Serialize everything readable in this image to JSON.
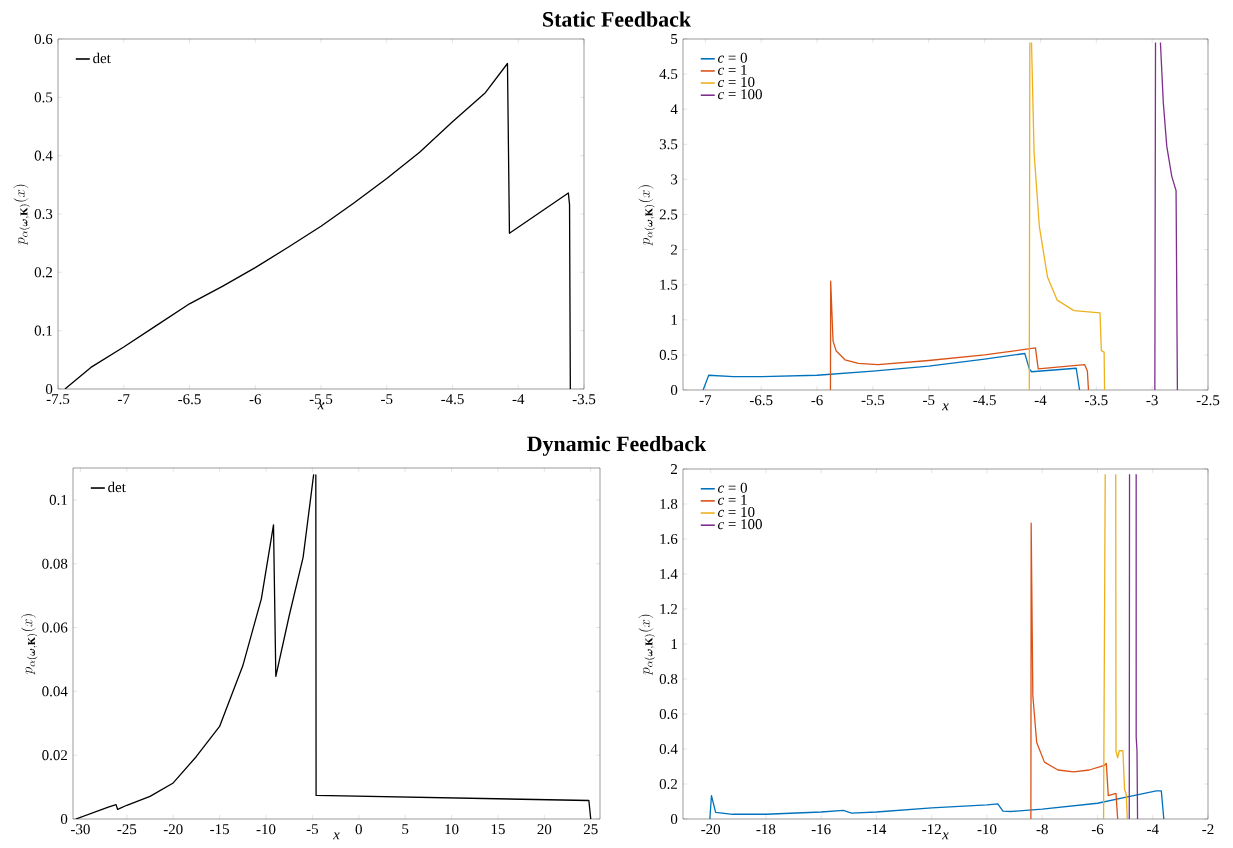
{
  "chart_data": [
    {
      "type": "line",
      "title": "Static Feedback",
      "xlabel": "*x*",
      "ylabel": "p_{\\alpha(\\boldsymbol{\\omega},\\mathbf{K})}(x)",
      "xlim": [
        -7.5,
        -3.5
      ],
      "ylim": [
        0,
        0.6
      ],
      "xticks": [
        -7.5,
        -7,
        -6.5,
        -6,
        -5.5,
        -5,
        -4.5,
        -4,
        -3.5
      ],
      "yticks": [
        0,
        0.1,
        0.2,
        0.3,
        0.4,
        0.5,
        0.6
      ],
      "legend": "top left",
      "series": [
        {
          "name": "det",
          "color": "#000000",
          "x": [
            -7.447,
            -7.25,
            -7,
            -6.75,
            -6.5,
            -6.25,
            -6,
            -5.75,
            -5.5,
            -5.25,
            -5,
            -4.75,
            -4.5,
            -4.25,
            -4.082,
            -4.067,
            -3.619,
            -3.61,
            -3.604
          ],
          "values": [
            0,
            0.037,
            0.072,
            0.109,
            0.146,
            0.176,
            0.208,
            0.243,
            0.279,
            0.319,
            0.361,
            0.406,
            0.458,
            0.508,
            0.558,
            0.267,
            0.336,
            0.316,
            0
          ]
        }
      ]
    },
    {
      "type": "line",
      "xlabel": "*x*",
      "ylabel": "p_{\\alpha(\\boldsymbol{\\omega},\\mathbf{K})}(x)",
      "xlim": [
        -7.2,
        -2.5
      ],
      "ylim": [
        0,
        5
      ],
      "xticks": [
        -7,
        -6.5,
        -6,
        -5.5,
        -5,
        -4.5,
        -4,
        -3.5,
        -3,
        -2.5
      ],
      "yticks": [
        0,
        0.5,
        1,
        1.5,
        2,
        2.5,
        3,
        3.5,
        4,
        4.5,
        5
      ],
      "legend": "top left",
      "series": [
        {
          "name": "*c* = 0",
          "color": "#0072bd",
          "x": [
            -7.02,
            -6.97,
            -6.75,
            -6.5,
            -6,
            -5.5,
            -5,
            -4.5,
            -4.14,
            -4.1,
            -4.08,
            -3.68,
            -3.65
          ],
          "values": [
            0,
            0.21,
            0.19,
            0.19,
            0.21,
            0.27,
            0.34,
            0.44,
            0.52,
            0.3,
            0.26,
            0.31,
            0
          ]
        },
        {
          "name": "*c* = 1",
          "color": "#d95319",
          "x": [
            -5.88,
            -5.878,
            -5.857,
            -5.83,
            -5.75,
            -5.63,
            -5.455,
            -5,
            -4.5,
            -4.045,
            -4.02,
            -3.604,
            -3.58,
            -3.57
          ],
          "values": [
            0,
            1.55,
            0.7,
            0.56,
            0.43,
            0.38,
            0.36,
            0.42,
            0.5,
            0.6,
            0.3,
            0.36,
            0.27,
            0
          ]
        },
        {
          "name": "*c* = 10",
          "color": "#edb120",
          "x": [
            -4.1,
            -4.095,
            -4.09,
            -4.08,
            -4.057,
            -4.01,
            -3.937,
            -3.85,
            -3.7,
            -3.467,
            -3.455,
            -3.43,
            -3.426
          ],
          "values": [
            0,
            4.95,
            null,
            4.95,
            3.38,
            2.33,
            1.61,
            1.28,
            1.13,
            1.1,
            0.56,
            0.54,
            0
          ]
        },
        {
          "name": "*c* = 100",
          "color": "#7e2f8e",
          "x": [
            -2.976,
            -2.97,
            -2.95,
            -2.926,
            -2.9,
            -2.869,
            -2.824,
            -2.786,
            -2.774
          ],
          "values": [
            0,
            4.95,
            null,
            4.95,
            4.09,
            3.47,
            3.04,
            2.84,
            0
          ]
        }
      ]
    },
    {
      "type": "line",
      "title": "Dynamic Feedback",
      "xlabel": "*x*",
      "ylabel": "p_{\\alpha(\\boldsymbol{\\omega},\\mathbf{K})}(x)",
      "xlim": [
        -30.8,
        26
      ],
      "ylim": [
        0,
        0.11
      ],
      "xticks": [
        -30,
        -25,
        -20,
        -15,
        -10,
        -5,
        0,
        5,
        10,
        15,
        20,
        25
      ],
      "yticks": [
        0,
        0.02,
        0.04,
        0.06,
        0.08,
        0.1
      ],
      "legend": "top left",
      "series": [
        {
          "name": "det",
          "color": "#000000",
          "x": [
            -30.5,
            -27,
            -26.16,
            -25.99,
            -25,
            -22.5,
            -20,
            -17.5,
            -15,
            -12.5,
            -10.5,
            -9.19,
            -8.94,
            -7.5,
            -6,
            -4.86,
            -4.7,
            -4.63,
            -4.6,
            24.8,
            25
          ],
          "values": [
            0,
            0.0037,
            0.0045,
            0.003,
            0.0043,
            0.0071,
            0.0113,
            0.0196,
            0.029,
            0.048,
            0.069,
            0.0922,
            0.0447,
            0.0637,
            0.082,
            0.108,
            null,
            0.108,
            0.0074,
            0.0058,
            0
          ]
        }
      ]
    },
    {
      "type": "line",
      "xlabel": "*x*",
      "ylabel": "p_{\\alpha(\\boldsymbol{\\omega},\\mathbf{K})}(x)",
      "xlim": [
        -21,
        -2
      ],
      "ylim": [
        0,
        2
      ],
      "xticks": [
        -20,
        -18,
        -16,
        -14,
        -12,
        -10,
        -8,
        -6,
        -4,
        -2
      ],
      "yticks": [
        0,
        0.2,
        0.4,
        0.6,
        0.8,
        1,
        1.2,
        1.4,
        1.6,
        1.8,
        2
      ],
      "legend": "top left",
      "series": [
        {
          "name": "*c* = 0",
          "color": "#0072bd",
          "x": [
            -20.03,
            -19.97,
            -19.82,
            -19.2,
            -18,
            -16,
            -15.2,
            -14.9,
            -14,
            -12,
            -10,
            -9.61,
            -9.42,
            -9.1,
            -8,
            -6,
            -5,
            -3.87,
            -3.69,
            -3.6
          ],
          "values": [
            0,
            0.134,
            0.038,
            0.027,
            0.027,
            0.04,
            0.049,
            0.034,
            0.04,
            0.063,
            0.081,
            0.087,
            0.045,
            0.043,
            0.056,
            0.09,
            0.123,
            0.161,
            0.161,
            0
          ]
        },
        {
          "name": "*c* = 1",
          "color": "#d95319",
          "x": [
            -8.41,
            -8.4,
            -8.34,
            -8.2,
            -7.92,
            -7.43,
            -6.86,
            -6.3,
            -5.75,
            -5.68,
            -5.61,
            -5.33,
            -5.27
          ],
          "values": [
            0,
            1.69,
            0.705,
            0.437,
            0.325,
            0.28,
            0.269,
            0.28,
            0.307,
            0.318,
            0.134,
            0.146,
            0
          ]
        },
        {
          "name": "*c* = 10",
          "color": "#edb120",
          "x": [
            -5.78,
            -5.72,
            -5.5,
            -5.34,
            -5.33,
            -5.27,
            -5.21,
            -5.08,
            -5.02,
            -4.96,
            -4.92
          ],
          "values": [
            0,
            1.97,
            null,
            1.97,
            0.39,
            0.35,
            0.39,
            0.39,
            0.17,
            0.14,
            0
          ]
        },
        {
          "name": "*c* = 100",
          "color": "#7e2f8e",
          "x": [
            -4.85,
            -4.84,
            -4.7,
            -4.6,
            -4.6,
            -4.57,
            -4.55
          ],
          "values": [
            0,
            1.97,
            null,
            1.97,
            0.47,
            0.39,
            0
          ]
        }
      ]
    }
  ]
}
